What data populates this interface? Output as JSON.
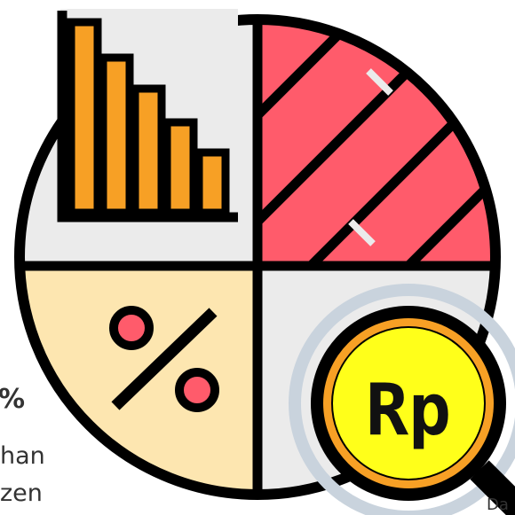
{
  "icon": {
    "coin_label": "Rp"
  },
  "side_text": {
    "percent": "%",
    "line1": "han",
    "line2": "zen",
    "corner": "Da"
  }
}
